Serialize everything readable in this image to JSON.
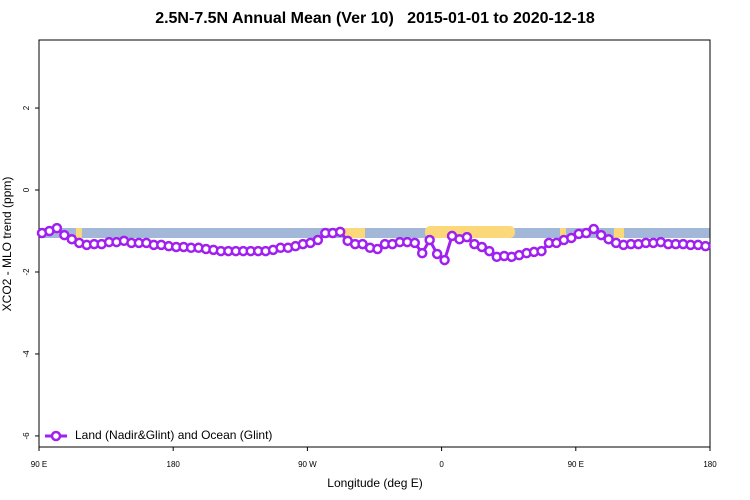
{
  "chart_data": {
    "type": "line",
    "title": "2.5N-7.5N Annual Mean (Ver 10)   2015-01-01 to 2020-12-18",
    "x_label": "Longitude (deg E)",
    "y_label": "XCO2 - MLO trend (ppm)",
    "xlim": [
      90,
      540
    ],
    "ylim": [
      -6.27,
      3.66
    ],
    "xticks": [
      {
        "value": 90,
        "label": "90 E"
      },
      180,
      {
        "value": 270,
        "label": "90 W"
      },
      {
        "value": 360,
        "label": "0"
      },
      {
        "value": 450,
        "label": "90 E"
      },
      {
        "value": 540,
        "label": "180"
      }
    ],
    "yticks": [
      -6,
      -4,
      -2,
      0,
      2
    ],
    "legend": "bottom-left",
    "x": [
      92,
      97,
      102,
      107,
      112,
      117,
      122,
      127,
      132,
      137,
      142,
      147,
      152,
      157,
      162,
      167,
      172,
      177,
      182,
      187,
      192,
      197,
      202,
      207,
      212,
      217,
      222,
      227,
      232,
      237,
      242,
      247,
      252,
      257,
      262,
      267,
      272,
      277,
      282,
      287,
      292,
      297,
      302,
      307,
      312,
      317,
      322,
      327,
      332,
      337,
      342,
      347,
      352,
      357,
      362,
      367,
      372,
      377,
      382,
      387,
      392,
      397,
      402,
      407,
      412,
      417,
      422,
      427,
      432,
      437,
      442,
      447,
      452,
      457,
      462,
      467,
      472,
      477,
      482,
      487,
      492,
      497,
      502,
      507,
      512,
      517,
      522,
      527,
      532,
      537
    ],
    "series": [
      {
        "name": "Land (Nadir&Glint) and Ocean (Glint)",
        "color": "#a020f0",
        "values": [
          -1.05,
          -1.0,
          -0.93,
          -1.1,
          -1.2,
          -1.29,
          -1.34,
          -1.32,
          -1.32,
          -1.27,
          -1.27,
          -1.24,
          -1.29,
          -1.29,
          -1.29,
          -1.34,
          -1.34,
          -1.37,
          -1.39,
          -1.39,
          -1.41,
          -1.41,
          -1.44,
          -1.46,
          -1.49,
          -1.49,
          -1.49,
          -1.49,
          -1.49,
          -1.49,
          -1.49,
          -1.46,
          -1.41,
          -1.41,
          -1.37,
          -1.32,
          -1.29,
          -1.22,
          -1.05,
          -1.05,
          -1.02,
          -1.24,
          -1.32,
          -1.32,
          -1.41,
          -1.44,
          -1.32,
          -1.32,
          -1.27,
          -1.27,
          -1.29,
          -1.54,
          -1.22,
          -1.56,
          -1.71,
          -1.12,
          -1.2,
          -1.15,
          -1.32,
          -1.39,
          -1.49,
          -1.63,
          -1.61,
          -1.63,
          -1.59,
          -1.54,
          -1.51,
          -1.49,
          -1.29,
          -1.29,
          -1.22,
          -1.17,
          -1.07,
          -1.05,
          -0.95,
          -1.1,
          -1.2,
          -1.29,
          -1.34,
          -1.32,
          -1.32,
          -1.29,
          -1.29,
          -1.27,
          -1.32,
          -1.32,
          -1.32,
          -1.34,
          -1.34,
          -1.37
        ]
      }
    ]
  }
}
